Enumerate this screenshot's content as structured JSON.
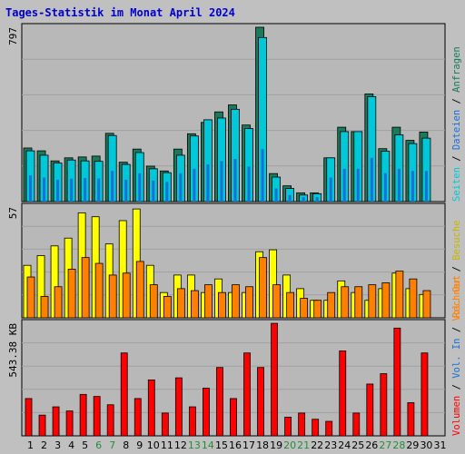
{
  "title": "Tages-Statistik im Monat April 2024",
  "colors": {
    "background": "#c0c0c0",
    "panel": "#b8b8b8",
    "title": "#0000cc",
    "anfragen": "#1a7a5a",
    "seiten": "#00c8d8",
    "dateien": "#1b6fd8",
    "besuche": "#ffff00",
    "rechner": "#ff8000",
    "volumen": "#ff0000",
    "weekend_label": "#2a8a3a",
    "weekday_label": "#000000"
  },
  "right_labels": {
    "top": [
      {
        "text": "Anfragen",
        "color": "#1a7a5a"
      },
      {
        "text": "Dateien",
        "color": "#1b6fd8"
      },
      {
        "text": "Seiten",
        "color": "#00c8d8"
      }
    ],
    "middle": [
      {
        "text": "Besuche",
        "color": "#c8b400"
      },
      {
        "text": "Rechner",
        "color": "#ff8000"
      }
    ],
    "bottom": [
      {
        "text": "Vol. Out",
        "color": "#ff8000"
      },
      {
        "text": "Vol. In",
        "color": "#1b6fd8"
      },
      {
        "text": "Volumen",
        "color": "#ff0000"
      }
    ]
  },
  "chart_data": [
    {
      "type": "bar",
      "panel": "top",
      "y_max_label": "797",
      "ylim": [
        0,
        797
      ],
      "categories": [
        "1",
        "2",
        "3",
        "4",
        "5",
        "6",
        "7",
        "8",
        "9",
        "10",
        "11",
        "12",
        "13",
        "14",
        "15",
        "16",
        "17",
        "18",
        "19",
        "20",
        "21",
        "22",
        "23",
        "24",
        "25",
        "26",
        "27",
        "28",
        "29",
        "30",
        "31"
      ],
      "weekend_days": [
        "6",
        "7",
        "13",
        "14",
        "20",
        "21",
        "27",
        "28"
      ],
      "series": [
        {
          "name": "Anfragen",
          "values": [
            245,
            232,
            186,
            200,
            204,
            208,
            312,
            180,
            240,
            162,
            140,
            240,
            310,
            362,
            410,
            442,
            350,
            800,
            128,
            72,
            40,
            40,
            200,
            340,
            320,
            492,
            242,
            340,
            280,
            318,
            0
          ]
        },
        {
          "name": "Seiten",
          "values": [
            232,
            212,
            176,
            190,
            186,
            184,
            302,
            170,
            224,
            150,
            132,
            212,
            300,
            374,
            382,
            422,
            334,
            750,
            112,
            60,
            30,
            36,
            200,
            320,
            320,
            480,
            230,
            305,
            265,
            290,
            0
          ]
        },
        {
          "name": "Dateien",
          "values": [
            120,
            110,
            100,
            105,
            108,
            106,
            140,
            100,
            130,
            96,
            90,
            130,
            150,
            170,
            185,
            195,
            160,
            240,
            60,
            30,
            20,
            20,
            110,
            150,
            150,
            200,
            130,
            150,
            140,
            140,
            0
          ]
        }
      ]
    },
    {
      "type": "bar",
      "panel": "middle",
      "y_max_label": "57",
      "ylim": [
        0,
        57
      ],
      "categories": [
        "1",
        "2",
        "3",
        "4",
        "5",
        "6",
        "7",
        "8",
        "9",
        "10",
        "11",
        "12",
        "13",
        "14",
        "15",
        "16",
        "17",
        "18",
        "19",
        "20",
        "21",
        "22",
        "23",
        "24",
        "25",
        "26",
        "27",
        "28",
        "29",
        "30",
        "31"
      ],
      "series": [
        {
          "name": "Besuche",
          "values": [
            27,
            32,
            37,
            41,
            54,
            52,
            38,
            50,
            56,
            27,
            13,
            22,
            22,
            13,
            20,
            13,
            13,
            34,
            35,
            22,
            15,
            9,
            9,
            19,
            13,
            9,
            15,
            23,
            15,
            12,
            0
          ]
        },
        {
          "name": "Rechner",
          "values": [
            21,
            11,
            16,
            25,
            31,
            28,
            22,
            23,
            29,
            17,
            11,
            15,
            14,
            17,
            13,
            17,
            16,
            31,
            17,
            13,
            10,
            9,
            13,
            16,
            16,
            17,
            18,
            24,
            20,
            14,
            0
          ]
        }
      ]
    },
    {
      "type": "bar",
      "panel": "bottom",
      "y_max_label": "543.38 KB",
      "ylim": [
        0,
        543.38
      ],
      "categories": [
        "1",
        "2",
        "3",
        "4",
        "5",
        "6",
        "7",
        "8",
        "9",
        "10",
        "11",
        "12",
        "13",
        "14",
        "15",
        "16",
        "17",
        "18",
        "19",
        "20",
        "21",
        "22",
        "23",
        "24",
        "25",
        "26",
        "27",
        "28",
        "29",
        "30",
        "31"
      ],
      "series": [
        {
          "name": "Volumen",
          "values": [
            180,
            100,
            140,
            120,
            200,
            190,
            150,
            400,
            180,
            270,
            110,
            280,
            140,
            230,
            330,
            180,
            400,
            330,
            543,
            90,
            110,
            80,
            70,
            410,
            110,
            250,
            300,
            520,
            160,
            400,
            0
          ]
        }
      ]
    }
  ]
}
